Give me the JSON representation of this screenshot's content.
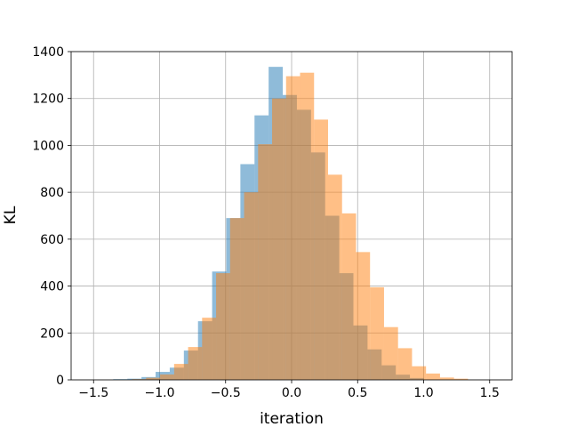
{
  "chart_data": {
    "type": "bar",
    "title": "",
    "xlabel": "iteration",
    "ylabel": "KL",
    "xlim": [
      -1.67,
      1.67
    ],
    "ylim": [
      0,
      1400
    ],
    "xticks": [
      -1.5,
      -1.0,
      -0.5,
      0.0,
      0.5,
      1.0,
      1.5
    ],
    "xtick_labels": [
      "−1.5",
      "−1.0",
      "−0.5",
      "0.0",
      "0.5",
      "1.0",
      "1.5"
    ],
    "yticks": [
      0,
      200,
      400,
      600,
      800,
      1000,
      1200,
      1400
    ],
    "ytick_labels": [
      "0",
      "200",
      "400",
      "600",
      "800",
      "1000",
      "1200",
      "1400"
    ],
    "grid": true,
    "series": [
      {
        "color": "#1f77b4",
        "alpha": 0.5,
        "bins": [
          -1.351,
          -1.244,
          -1.137,
          -1.03,
          -0.923,
          -0.816,
          -0.709,
          -0.602,
          -0.495,
          -0.388,
          -0.281,
          -0.174,
          -0.067,
          0.04,
          0.147,
          0.254,
          0.361,
          0.468,
          0.575,
          0.682,
          0.789,
          0.896,
          1.003
        ],
        "values": [
          3,
          5,
          12,
          34,
          52,
          125,
          250,
          462,
          690,
          920,
          1128,
          1335,
          1215,
          1152,
          970,
          700,
          455,
          232,
          130,
          62,
          22,
          8
        ]
      },
      {
        "color": "#ff7f0e",
        "alpha": 0.5,
        "bins": [
          -1.208,
          -1.102,
          -0.996,
          -0.89,
          -0.784,
          -0.678,
          -0.572,
          -0.466,
          -0.36,
          -0.254,
          -0.148,
          -0.042,
          0.064,
          0.17,
          0.276,
          0.382,
          0.488,
          0.594,
          0.7,
          0.806,
          0.912,
          1.018,
          1.124,
          1.23,
          1.336
        ],
        "values": [
          3,
          9,
          23,
          68,
          140,
          265,
          455,
          690,
          800,
          1005,
          1200,
          1295,
          1310,
          1110,
          875,
          710,
          545,
          395,
          225,
          135,
          58,
          27,
          10,
          5
        ]
      }
    ]
  }
}
